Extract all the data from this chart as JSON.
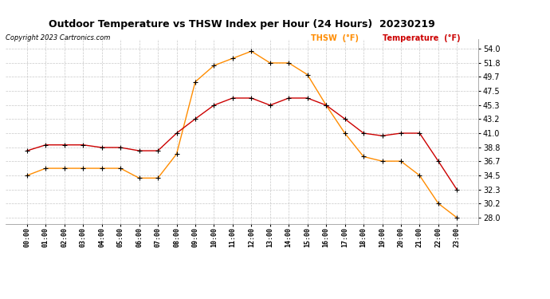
{
  "title": "Outdoor Temperature vs THSW Index per Hour (24 Hours)  20230219",
  "copyright": "Copyright 2023 Cartronics.com",
  "legend_thsw": "THSW  (°F)",
  "legend_temp": "Temperature  (°F)",
  "hours": [
    "00:00",
    "01:00",
    "02:00",
    "03:00",
    "04:00",
    "05:00",
    "06:00",
    "07:00",
    "08:00",
    "09:00",
    "10:00",
    "11:00",
    "12:00",
    "13:00",
    "14:00",
    "15:00",
    "16:00",
    "17:00",
    "18:00",
    "19:00",
    "20:00",
    "21:00",
    "22:00",
    "23:00"
  ],
  "temperature": [
    38.3,
    39.2,
    39.2,
    39.2,
    38.8,
    38.8,
    38.3,
    38.3,
    41.0,
    43.2,
    45.3,
    46.4,
    46.4,
    45.3,
    46.4,
    46.4,
    45.3,
    43.2,
    41.0,
    40.6,
    41.0,
    41.0,
    36.7,
    32.3
  ],
  "thsw": [
    34.5,
    35.6,
    35.6,
    35.6,
    35.6,
    35.6,
    34.1,
    34.1,
    37.8,
    48.9,
    51.4,
    52.5,
    53.6,
    51.8,
    51.8,
    50.0,
    45.3,
    41.0,
    37.4,
    36.7,
    36.7,
    34.5,
    30.2,
    28.0
  ],
  "ylim_min": 27.0,
  "ylim_max": 55.5,
  "yticks": [
    28.0,
    30.2,
    32.3,
    34.5,
    36.7,
    38.8,
    41.0,
    43.2,
    45.3,
    47.5,
    49.7,
    51.8,
    54.0
  ],
  "temp_color": "#cc0000",
  "thsw_color": "#ff8c00",
  "marker_color": "#000000",
  "bg_color": "#ffffff",
  "grid_color": "#c8c8c8",
  "title_color": "#000000",
  "copyright_color": "#000000",
  "legend_thsw_color": "#ff8c00",
  "legend_temp_color": "#cc0000"
}
